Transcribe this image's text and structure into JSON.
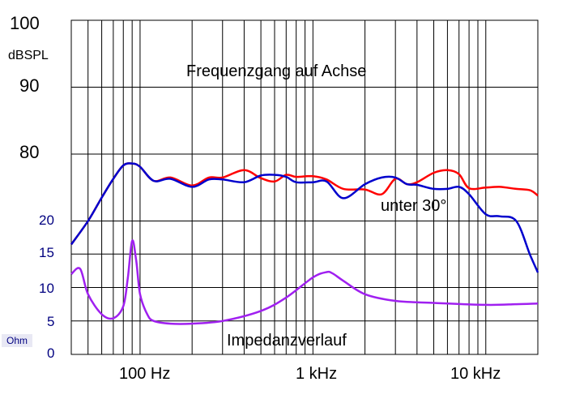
{
  "chart_data": {
    "type": "line",
    "title": "Frequenzgang auf Achse",
    "x_scale": "log",
    "xlim": [
      40,
      20000
    ],
    "x_ticks": [
      {
        "value": 100,
        "label": "100 Hz"
      },
      {
        "value": 1000,
        "label": "1 kHz"
      },
      {
        "value": 10000,
        "label": "10 kHz"
      }
    ],
    "spl_axis": {
      "unit": "dBSPL",
      "range": [
        60,
        100
      ],
      "ticks": [
        {
          "value": 100,
          "label": "100"
        },
        {
          "value": 90,
          "label": "90"
        },
        {
          "value": 80,
          "label": "80"
        }
      ]
    },
    "impedance_axis": {
      "unit": "Ohm",
      "range": [
        0,
        20
      ],
      "ticks": [
        {
          "value": 20,
          "label": "20"
        },
        {
          "value": 15,
          "label": "15"
        },
        {
          "value": 10,
          "label": "10"
        },
        {
          "value": 5,
          "label": "5"
        },
        {
          "value": 0,
          "label": "0"
        }
      ]
    },
    "annotations": {
      "off_axis": "unter 30°",
      "impedance": "Impedanzverlauf"
    },
    "series": [
      {
        "axis": "spl",
        "color": "#ff0000",
        "x": [
          40,
          50,
          60,
          70,
          80,
          90,
          100,
          120,
          150,
          200,
          250,
          300,
          400,
          500,
          600,
          700,
          800,
          1000,
          1200,
          1500,
          2000,
          2500,
          3000,
          3500,
          4000,
          5000,
          6000,
          7000,
          8000,
          10000,
          12000,
          15000,
          18000,
          20000
        ],
        "y": [
          66.5,
          70,
          73.5,
          76.3,
          78.3,
          78.6,
          78.1,
          76,
          76.5,
          75.3,
          76.5,
          76.5,
          77.6,
          76.4,
          75.9,
          76.9,
          76.6,
          76.7,
          76.2,
          74.8,
          74.7,
          74,
          76.3,
          75.5,
          75.8,
          77.2,
          77.6,
          77,
          74.9,
          75,
          75.1,
          74.8,
          74.6,
          73.8
        ]
      },
      {
        "axis": "spl",
        "color": "#0000cd",
        "x": [
          40,
          50,
          60,
          70,
          80,
          90,
          100,
          120,
          150,
          200,
          250,
          300,
          400,
          500,
          600,
          700,
          800,
          1000,
          1200,
          1500,
          2000,
          2500,
          3000,
          3500,
          4000,
          5000,
          6000,
          7000,
          8000,
          10000,
          12000,
          15000,
          18000,
          20000
        ],
        "y": [
          66.5,
          70,
          73.5,
          76.3,
          78.3,
          78.6,
          78.1,
          76,
          76.3,
          75.1,
          76.2,
          76.2,
          75.8,
          76.8,
          76.9,
          76.6,
          75.8,
          75.8,
          75.9,
          73.4,
          75.5,
          76.5,
          76.5,
          75.5,
          75.4,
          74.8,
          74.8,
          75.1,
          74,
          71,
          70.7,
          70,
          65,
          62.3
        ]
      },
      {
        "axis": "impedance",
        "color": "#a020f0",
        "x": [
          40,
          45,
          50,
          60,
          70,
          80,
          85,
          90,
          95,
          100,
          110,
          120,
          150,
          200,
          300,
          500,
          700,
          1000,
          1200,
          1300,
          1500,
          2000,
          3000,
          5000,
          10000,
          15000,
          20000
        ],
        "y": [
          12,
          12.8,
          9,
          6,
          5.4,
          7.2,
          11.5,
          17,
          14,
          9,
          6,
          5,
          4.6,
          4.6,
          5,
          6.5,
          8.5,
          11.5,
          12.3,
          12.1,
          11,
          9,
          8,
          7.7,
          7.4,
          7.5,
          7.6
        ]
      }
    ]
  }
}
